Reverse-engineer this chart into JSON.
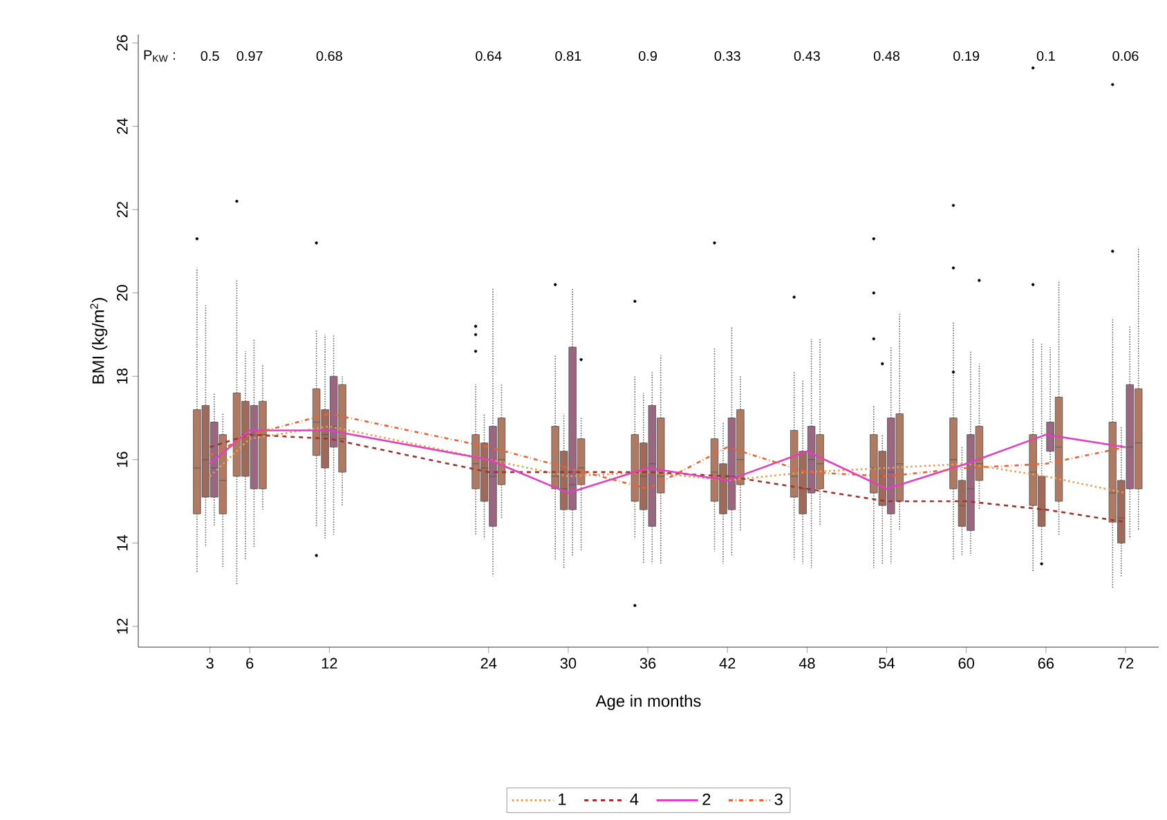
{
  "chart_data": {
    "type": "box",
    "xlabel": "Age in months",
    "ylabel": "BMI (kg/m$^{2}$)",
    "legend": "bottom",
    "grid": false,
    "xlim": [
      -2.4,
      74.5
    ],
    "xticks": [
      3,
      6,
      12,
      24,
      30,
      36,
      42,
      48,
      54,
      60,
      66,
      72
    ],
    "ylim": [
      11.5,
      26.2
    ],
    "yticks": [
      12,
      14,
      16,
      18,
      20,
      22,
      24,
      26
    ],
    "annotations": [
      "P$_{KW}$ :",
      "0.5",
      "0.97",
      "0.68",
      "0.64",
      "0.81",
      "0.9",
      "0.33",
      "0.43",
      "0.48",
      "0.19",
      "0.1",
      "0.06"
    ],
    "series": [
      {
        "color": "#b07a62",
        "x": [
          3,
          6,
          12,
          24,
          30,
          36,
          42,
          48,
          54,
          60,
          66,
          72
        ],
        "boxes": [
          {
            "low": 13.3,
            "q1": 14.7,
            "median": 15.8,
            "q3": 17.2,
            "high": 20.6,
            "outliers": [
              21.3
            ]
          },
          {
            "low": 13.0,
            "q1": 15.6,
            "median": 16.5,
            "q3": 17.6,
            "high": 20.3,
            "outliers": [
              22.2
            ]
          },
          {
            "low": 14.4,
            "q1": 16.1,
            "median": 16.9,
            "q3": 17.7,
            "high": 19.1,
            "outliers": [
              21.2,
              13.7
            ]
          },
          {
            "low": 14.2,
            "q1": 15.3,
            "median": 15.9,
            "q3": 16.6,
            "high": 17.8,
            "outliers": [
              19.2,
              19.0,
              18.6
            ]
          },
          {
            "low": 13.6,
            "q1": 15.3,
            "median": 15.6,
            "q3": 16.8,
            "high": 18.5,
            "outliers": [
              20.2
            ]
          },
          {
            "low": 14.1,
            "q1": 15.0,
            "median": 15.7,
            "q3": 16.6,
            "high": 18.0,
            "outliers": [
              19.8,
              12.5
            ]
          },
          {
            "low": 13.8,
            "q1": 15.0,
            "median": 15.7,
            "q3": 16.5,
            "high": 18.7,
            "outliers": [
              21.2
            ]
          },
          {
            "low": 13.6,
            "q1": 15.1,
            "median": 15.6,
            "q3": 16.7,
            "high": 18.1,
            "outliers": [
              19.9
            ]
          },
          {
            "low": 13.4,
            "q1": 15.2,
            "median": 15.8,
            "q3": 16.6,
            "high": 17.3,
            "outliers": [
              21.3,
              20.0,
              18.9
            ]
          },
          {
            "low": 13.6,
            "q1": 15.3,
            "median": 16.0,
            "q3": 17.0,
            "high": 19.3,
            "outliers": [
              22.1,
              20.6,
              18.1
            ]
          },
          {
            "low": 13.3,
            "q1": 14.9,
            "median": 15.7,
            "q3": 16.6,
            "high": 18.9,
            "outliers": [
              20.2,
              25.4
            ]
          },
          {
            "low": 12.9,
            "q1": 14.5,
            "median": 15.2,
            "q3": 16.9,
            "high": 19.4,
            "outliers": [
              21.0,
              25.0
            ]
          }
        ]
      },
      {
        "color": "#a06a5a",
        "x": [
          3,
          6,
          12,
          24,
          30,
          36,
          42,
          48,
          54,
          60,
          66,
          72
        ],
        "boxes": [
          {
            "low": 13.9,
            "q1": 15.1,
            "median": 16.0,
            "q3": 17.3,
            "high": 19.7
          },
          {
            "low": 13.6,
            "q1": 15.6,
            "median": 16.6,
            "q3": 17.4,
            "high": 18.6
          },
          {
            "low": 14.1,
            "q1": 15.8,
            "median": 16.6,
            "q3": 17.2,
            "high": 19.0
          },
          {
            "low": 14.1,
            "q1": 15.0,
            "median": 15.8,
            "q3": 16.4,
            "high": 17.1
          },
          {
            "low": 13.4,
            "q1": 14.8,
            "median": 15.3,
            "q3": 16.2,
            "high": 17.1
          },
          {
            "low": 13.5,
            "q1": 14.8,
            "median": 15.6,
            "q3": 16.4,
            "high": 17.6
          },
          {
            "low": 13.5,
            "q1": 14.7,
            "median": 15.5,
            "q3": 15.9,
            "high": 16.9
          },
          {
            "low": 13.5,
            "q1": 14.7,
            "median": 15.3,
            "q3": 16.2,
            "high": 17.9
          },
          {
            "low": 13.5,
            "q1": 14.9,
            "median": 15.6,
            "q3": 16.2,
            "high": 16.6,
            "outliers": [
              18.3
            ]
          },
          {
            "low": 13.7,
            "q1": 14.4,
            "median": 14.9,
            "q3": 15.5,
            "high": 16.3
          },
          {
            "low": 13.6,
            "q1": 14.4,
            "median": 14.8,
            "q3": 15.6,
            "high": 18.8,
            "outliers": [
              13.5
            ]
          },
          {
            "low": 13.2,
            "q1": 14.0,
            "median": 14.6,
            "q3": 15.5,
            "high": 16.8
          }
        ]
      },
      {
        "color": "#9a6680",
        "x": [
          3,
          6,
          12,
          24,
          30,
          36,
          42,
          48,
          54,
          60,
          66,
          72
        ],
        "boxes": [
          {
            "low": 14.4,
            "q1": 15.1,
            "median": 15.8,
            "q3": 16.9,
            "high": 17.6
          },
          {
            "low": 13.9,
            "q1": 15.3,
            "median": 16.7,
            "q3": 17.3,
            "high": 18.9
          },
          {
            "low": 14.2,
            "q1": 16.3,
            "median": 16.8,
            "q3": 18.0,
            "high": 19.0
          },
          {
            "low": 13.2,
            "q1": 14.4,
            "median": 15.6,
            "q3": 16.8,
            "high": 20.1
          },
          {
            "low": 13.7,
            "q1": 14.8,
            "median": 15.4,
            "q3": 18.7,
            "high": 20.1
          },
          {
            "low": 13.5,
            "q1": 14.4,
            "median": 15.9,
            "q3": 17.3,
            "high": 18.1
          },
          {
            "low": 13.7,
            "q1": 14.8,
            "median": 15.6,
            "q3": 17.0,
            "high": 19.2
          },
          {
            "low": 13.4,
            "q1": 15.2,
            "median": 16.0,
            "q3": 16.8,
            "high": 18.9
          },
          {
            "low": 13.5,
            "q1": 14.7,
            "median": 15.7,
            "q3": 17.0,
            "high": 18.7
          },
          {
            "low": 13.7,
            "q1": 14.3,
            "median": 15.3,
            "q3": 16.6,
            "high": 18.6
          },
          {
            "low": 15.9,
            "q1": 16.2,
            "median": 16.6,
            "q3": 16.9,
            "high": 18.7
          },
          {
            "low": 14.1,
            "q1": 15.3,
            "median": 16.3,
            "q3": 17.8,
            "high": 19.2
          }
        ]
      },
      {
        "color": "#b07a62",
        "x": [
          3,
          6,
          12,
          24,
          30,
          36,
          42,
          48,
          54,
          60,
          66,
          72
        ],
        "boxes": [
          {
            "low": 13.4,
            "q1": 14.7,
            "median": 15.5,
            "q3": 16.6,
            "high": 17.1
          },
          {
            "low": 14.8,
            "q1": 15.3,
            "median": 16.6,
            "q3": 17.4,
            "high": 18.3
          },
          {
            "low": 14.9,
            "q1": 15.7,
            "median": 16.5,
            "q3": 17.8,
            "high": 18.0
          },
          {
            "low": 14.6,
            "q1": 15.4,
            "median": 16.0,
            "q3": 17.0,
            "high": 17.8
          },
          {
            "low": 13.8,
            "q1": 15.4,
            "median": 15.8,
            "q3": 16.5,
            "high": 17.0,
            "outliers": [
              18.4
            ]
          },
          {
            "low": 13.5,
            "q1": 15.2,
            "median": 15.6,
            "q3": 17.0,
            "high": 18.5
          },
          {
            "low": 14.3,
            "q1": 15.4,
            "median": 16.0,
            "q3": 17.2,
            "high": 18.0
          },
          {
            "low": 14.4,
            "q1": 15.3,
            "median": 15.9,
            "q3": 16.6,
            "high": 18.9
          },
          {
            "low": 14.3,
            "q1": 15.0,
            "median": 15.9,
            "q3": 17.1,
            "high": 19.5
          },
          {
            "low": 14.8,
            "q1": 15.5,
            "median": 15.9,
            "q3": 16.8,
            "high": 18.3,
            "outliers": [
              20.3
            ]
          },
          {
            "low": 14.2,
            "q1": 15.0,
            "median": 16.3,
            "q3": 17.5,
            "high": 20.3
          },
          {
            "low": 14.3,
            "q1": 15.3,
            "median": 16.4,
            "q3": 17.7,
            "high": 21.1
          }
        ]
      },
      {
        "type": "line",
        "name": "1",
        "color": "#f39a4a",
        "line_style": "dotted",
        "x": [
          3,
          6,
          12,
          24,
          30,
          36,
          42,
          48,
          54,
          60,
          66,
          72
        ],
        "values": [
          15.6,
          16.5,
          16.8,
          16.0,
          15.6,
          15.7,
          15.5,
          15.7,
          15.8,
          15.9,
          15.6,
          15.2
        ]
      },
      {
        "type": "line",
        "name": "4",
        "color": "#a3302a",
        "line_style": "dashed",
        "x": [
          3,
          6,
          12,
          24,
          30,
          36,
          42,
          48,
          54,
          60,
          66,
          72
        ],
        "values": [
          16.3,
          16.6,
          16.5,
          15.7,
          15.7,
          15.7,
          15.6,
          15.3,
          15.0,
          15.0,
          14.8,
          14.5
        ]
      },
      {
        "type": "line",
        "name": "2",
        "color": "#e040c0",
        "line_style": "solid",
        "x": [
          3,
          6,
          12,
          24,
          30,
          36,
          42,
          48,
          54,
          60,
          66,
          72
        ],
        "values": [
          15.9,
          16.7,
          16.7,
          16.0,
          15.2,
          15.8,
          15.5,
          16.2,
          15.3,
          15.9,
          16.6,
          16.3
        ]
      },
      {
        "type": "line",
        "name": "3",
        "color": "#f06030",
        "line_style": "dashdot",
        "x": [
          3,
          6,
          12,
          24,
          30,
          36,
          42,
          48,
          54,
          60,
          66,
          72
        ],
        "values": [
          16.1,
          16.6,
          17.1,
          16.3,
          15.8,
          15.3,
          16.3,
          15.7,
          15.6,
          15.8,
          15.9,
          16.3
        ]
      }
    ]
  }
}
